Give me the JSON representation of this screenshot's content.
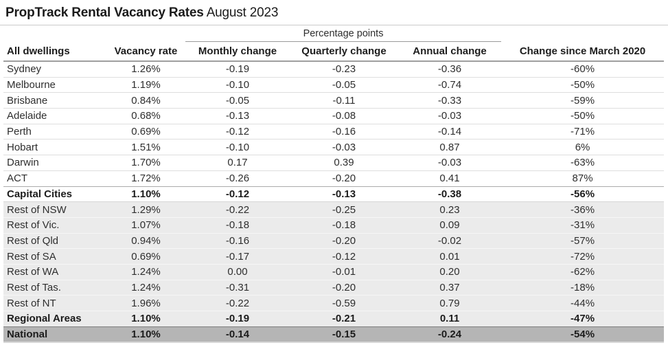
{
  "title": {
    "brand": "PropTrack Rental Vacancy Rates",
    "period": "August 2023"
  },
  "table": {
    "group_header": "Percentage points",
    "columns": [
      "All dwellings",
      "Vacancy rate",
      "Monthly change",
      "Quarterly change",
      "Annual change",
      "Change since March 2020"
    ],
    "rows": [
      {
        "style": "plain",
        "cells": [
          "Sydney",
          "1.26%",
          "-0.19",
          "-0.23",
          "-0.36",
          "-60%"
        ]
      },
      {
        "style": "plain",
        "cells": [
          "Melbourne",
          "1.19%",
          "-0.10",
          "-0.05",
          "-0.74",
          "-50%"
        ]
      },
      {
        "style": "plain",
        "cells": [
          "Brisbane",
          "0.84%",
          "-0.05",
          "-0.11",
          "-0.33",
          "-59%"
        ]
      },
      {
        "style": "plain",
        "cells": [
          "Adelaide",
          "0.68%",
          "-0.13",
          "-0.08",
          "-0.03",
          "-50%"
        ]
      },
      {
        "style": "plain",
        "cells": [
          "Perth",
          "0.69%",
          "-0.12",
          "-0.16",
          "-0.14",
          "-71%"
        ]
      },
      {
        "style": "plain",
        "cells": [
          "Hobart",
          "1.51%",
          "-0.10",
          "-0.03",
          "0.87",
          "6%"
        ]
      },
      {
        "style": "plain",
        "cells": [
          "Darwin",
          "1.70%",
          "0.17",
          "0.39",
          "-0.03",
          "-63%"
        ]
      },
      {
        "style": "plain",
        "cells": [
          "ACT",
          "1.72%",
          "-0.26",
          "-0.20",
          "0.41",
          "87%"
        ]
      },
      {
        "style": "bold",
        "cells": [
          "Capital Cities",
          "1.10%",
          "-0.12",
          "-0.13",
          "-0.38",
          "-56%"
        ]
      },
      {
        "style": "shaded first-shaded",
        "cells": [
          "Rest of NSW",
          "1.29%",
          "-0.22",
          "-0.25",
          "0.23",
          "-36%"
        ]
      },
      {
        "style": "shaded",
        "cells": [
          "Rest of Vic.",
          "1.07%",
          "-0.18",
          "-0.18",
          "0.09",
          "-31%"
        ]
      },
      {
        "style": "shaded",
        "cells": [
          "Rest of Qld",
          "0.94%",
          "-0.16",
          "-0.20",
          "-0.02",
          "-57%"
        ]
      },
      {
        "style": "shaded",
        "cells": [
          "Rest of SA",
          "0.69%",
          "-0.17",
          "-0.12",
          "0.01",
          "-72%"
        ]
      },
      {
        "style": "shaded",
        "cells": [
          "Rest of WA",
          "1.24%",
          "0.00",
          "-0.01",
          "0.20",
          "-62%"
        ]
      },
      {
        "style": "shaded",
        "cells": [
          "Rest of Tas.",
          "1.24%",
          "-0.31",
          "-0.20",
          "0.37",
          "-18%"
        ]
      },
      {
        "style": "shaded",
        "cells": [
          "Rest of NT",
          "1.96%",
          "-0.22",
          "-0.59",
          "0.79",
          "-44%"
        ]
      },
      {
        "style": "shaded-bold",
        "cells": [
          "Regional Areas",
          "1.10%",
          "-0.19",
          "-0.21",
          "0.11",
          "-47%"
        ]
      },
      {
        "style": "total",
        "cells": [
          "National",
          "1.10%",
          "-0.14",
          "-0.15",
          "-0.24",
          "-54%"
        ]
      }
    ]
  },
  "colors": {
    "shaded-row-bg": "#ebebeb",
    "national-row-bg": "#b5b5b5",
    "header-rule": "#9e9e9e",
    "group-rule": "#9a9a9a",
    "title-rule": "#cbcbcb"
  }
}
